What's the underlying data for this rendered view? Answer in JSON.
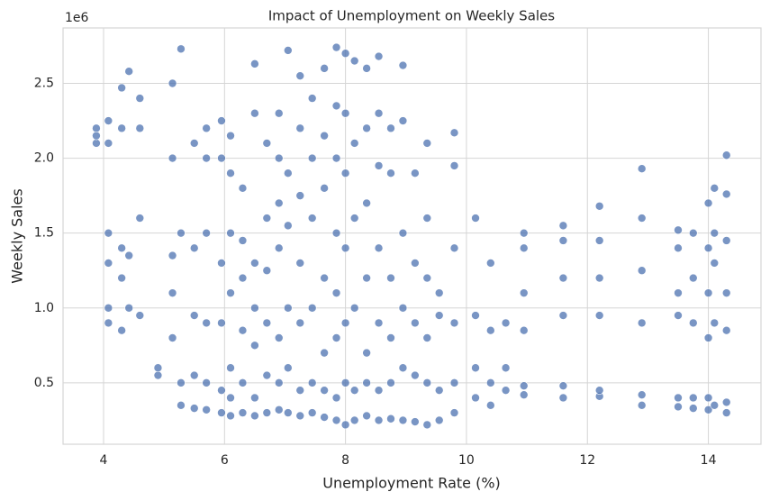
{
  "chart_data": {
    "type": "scatter",
    "title": "Impact of Unemployment on Weekly Sales",
    "xlabel": "Unemployment Rate (%)",
    "ylabel": "Weekly Sales",
    "y_offset_label": "1e6",
    "color": "#4c72b0",
    "grid": true,
    "xlim": [
      3.33,
      14.87
    ],
    "xticks": [
      4,
      6,
      8,
      10,
      12,
      14
    ],
    "ylim": [
      0.09,
      2.87
    ],
    "yticks": [
      0.5,
      {
        "value": 1,
        "label": "1.0"
      },
      1.5,
      {
        "value": 2,
        "label": "2.0"
      },
      2.5
    ],
    "x": [
      3.88,
      3.88,
      3.88,
      4.08,
      4.08,
      4.08,
      4.08,
      4.08,
      4.08,
      4.3,
      4.3,
      4.3,
      4.3,
      4.3,
      4.42,
      4.42,
      4.42,
      4.6,
      4.6,
      4.6,
      4.6,
      4.9,
      4.9,
      5.14,
      5.14,
      5.14,
      5.14,
      5.14,
      5.28,
      5.28,
      5.28,
      5.28,
      5.5,
      5.5,
      5.5,
      5.5,
      5.5,
      5.7,
      5.7,
      5.7,
      5.7,
      5.7,
      5.7,
      5.95,
      5.95,
      5.95,
      5.95,
      5.95,
      5.95,
      6.1,
      6.1,
      6.1,
      6.1,
      6.1,
      6.1,
      6.1,
      6.3,
      6.3,
      6.3,
      6.3,
      6.3,
      6.3,
      6.5,
      6.5,
      6.5,
      6.5,
      6.5,
      6.5,
      6.5,
      6.7,
      6.7,
      6.7,
      6.7,
      6.7,
      6.7,
      6.9,
      6.9,
      6.9,
      6.9,
      6.9,
      6.9,
      6.9,
      7.05,
      7.05,
      7.05,
      7.05,
      7.05,
      7.05,
      7.25,
      7.25,
      7.25,
      7.25,
      7.25,
      7.25,
      7.25,
      7.45,
      7.45,
      7.45,
      7.45,
      7.45,
      7.45,
      7.65,
      7.65,
      7.65,
      7.65,
      7.65,
      7.65,
      7.65,
      7.85,
      7.85,
      7.85,
      7.85,
      7.85,
      7.85,
      7.85,
      7.85,
      8.0,
      8.0,
      8.0,
      8.0,
      8.0,
      8.0,
      8.0,
      8.15,
      8.15,
      8.15,
      8.15,
      8.15,
      8.15,
      8.35,
      8.35,
      8.35,
      8.35,
      8.35,
      8.35,
      8.35,
      8.55,
      8.55,
      8.55,
      8.55,
      8.55,
      8.55,
      8.55,
      8.75,
      8.75,
      8.75,
      8.75,
      8.75,
      8.75,
      8.95,
      8.95,
      8.95,
      8.95,
      8.95,
      8.95,
      9.15,
      9.15,
      9.15,
      9.15,
      9.15,
      9.35,
      9.35,
      9.35,
      9.35,
      9.35,
      9.35,
      9.55,
      9.55,
      9.55,
      9.55,
      9.8,
      9.8,
      9.8,
      9.8,
      9.8,
      9.8,
      10.15,
      10.15,
      10.15,
      10.15,
      10.4,
      10.4,
      10.4,
      10.4,
      10.65,
      10.65,
      10.65,
      10.95,
      10.95,
      10.95,
      10.95,
      10.95,
      10.95,
      11.6,
      11.6,
      11.6,
      11.6,
      11.6,
      11.6,
      12.2,
      12.2,
      12.2,
      12.2,
      12.2,
      12.2,
      12.9,
      12.9,
      12.9,
      12.9,
      12.9,
      12.9,
      13.5,
      13.5,
      13.5,
      13.5,
      13.5,
      13.5,
      13.75,
      13.75,
      13.75,
      13.75,
      13.75,
      14.0,
      14.0,
      14.0,
      14.0,
      14.0,
      14.0,
      14.1,
      14.1,
      14.1,
      14.1,
      14.1,
      14.3,
      14.3,
      14.3,
      14.3,
      14.3,
      14.3,
      14.3
    ],
    "values": [
      2.1,
      2.2,
      2.15,
      0.9,
      1.0,
      1.3,
      1.5,
      2.1,
      2.25,
      0.85,
      1.2,
      1.4,
      2.2,
      2.47,
      1.0,
      1.35,
      2.58,
      0.95,
      1.6,
      2.2,
      2.4,
      0.55,
      0.6,
      0.8,
      1.1,
      1.35,
      2.0,
      2.5,
      0.35,
      0.5,
      1.5,
      2.73,
      0.33,
      0.55,
      0.95,
      1.4,
      2.1,
      0.32,
      0.5,
      0.9,
      1.5,
      2.0,
      2.2,
      0.3,
      0.45,
      0.9,
      1.3,
      2.0,
      2.25,
      0.28,
      0.4,
      0.6,
      1.1,
      1.5,
      1.9,
      2.15,
      0.3,
      0.5,
      0.85,
      1.2,
      1.45,
      1.8,
      0.28,
      0.4,
      0.75,
      1.0,
      1.3,
      2.3,
      2.63,
      0.3,
      0.55,
      0.9,
      1.25,
      1.6,
      2.1,
      0.32,
      0.5,
      0.8,
      1.4,
      1.7,
      2.0,
      2.3,
      0.3,
      0.6,
      1.0,
      1.55,
      1.9,
      2.72,
      0.28,
      0.45,
      0.9,
      1.3,
      1.75,
      2.2,
      2.55,
      0.3,
      0.5,
      1.0,
      1.6,
      2.0,
      2.4,
      0.27,
      0.45,
      0.7,
      1.2,
      1.8,
      2.15,
      2.6,
      0.25,
      0.4,
      0.8,
      1.1,
      1.5,
      2.0,
      2.35,
      2.74,
      0.22,
      0.5,
      0.9,
      1.4,
      1.9,
      2.3,
      2.7,
      0.25,
      0.45,
      1.0,
      1.6,
      2.1,
      2.65,
      0.28,
      0.5,
      0.7,
      1.2,
      1.7,
      2.2,
      2.6,
      0.25,
      0.45,
      0.9,
      1.4,
      1.95,
      2.3,
      2.68,
      0.26,
      0.5,
      0.8,
      1.2,
      1.9,
      2.2,
      0.25,
      0.6,
      1.0,
      1.5,
      2.25,
      2.62,
      0.24,
      0.55,
      0.9,
      1.3,
      1.9,
      0.22,
      0.5,
      0.8,
      1.2,
      1.6,
      2.1,
      0.25,
      0.45,
      0.95,
      1.1,
      0.3,
      0.5,
      0.9,
      1.4,
      1.95,
      2.17,
      0.4,
      0.6,
      0.95,
      1.6,
      0.35,
      0.5,
      0.85,
      1.3,
      0.45,
      0.6,
      0.9,
      0.42,
      0.48,
      0.85,
      1.1,
      1.4,
      1.5,
      0.4,
      0.48,
      0.95,
      1.2,
      1.45,
      1.55,
      0.41,
      0.45,
      0.95,
      1.2,
      1.45,
      1.68,
      0.35,
      0.42,
      0.9,
      1.25,
      1.6,
      1.93,
      0.34,
      0.4,
      0.95,
      1.1,
      1.4,
      1.52,
      0.33,
      0.4,
      0.9,
      1.2,
      1.5,
      0.32,
      0.4,
      0.8,
      1.1,
      1.4,
      1.7,
      0.35,
      0.9,
      1.3,
      1.5,
      1.8,
      0.3,
      0.37,
      0.85,
      1.1,
      1.45,
      1.76,
      2.02
    ]
  }
}
